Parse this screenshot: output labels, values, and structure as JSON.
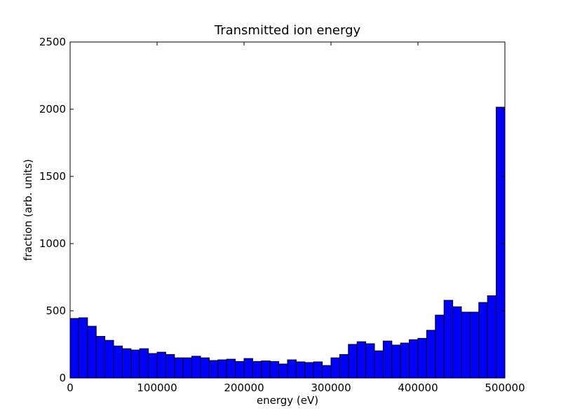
{
  "chart_data": {
    "type": "bar",
    "title": "Transmitted ion energy",
    "xlabel": "energy (eV)",
    "ylabel": "fraction (arb. units)",
    "xlim": [
      0,
      500000
    ],
    "ylim": [
      0,
      2500
    ],
    "bin_width": 10000,
    "xticks": [
      0,
      100000,
      200000,
      300000,
      400000,
      500000
    ],
    "xtick_labels": [
      "0",
      "100000",
      "200000",
      "300000",
      "400000",
      "500000"
    ],
    "yticks": [
      0,
      500,
      1000,
      1500,
      2000,
      2500
    ],
    "ytick_labels": [
      "0",
      "500",
      "1000",
      "1500",
      "2000",
      "2500"
    ],
    "grid": false,
    "bar_color": "#0000ff",
    "edge_color": "#000000",
    "bins_start": [
      0,
      10000,
      20000,
      30000,
      40000,
      50000,
      60000,
      70000,
      80000,
      90000,
      100000,
      110000,
      120000,
      130000,
      140000,
      150000,
      160000,
      170000,
      180000,
      190000,
      200000,
      210000,
      220000,
      230000,
      240000,
      250000,
      260000,
      270000,
      280000,
      290000,
      300000,
      310000,
      320000,
      330000,
      340000,
      350000,
      360000,
      370000,
      380000,
      390000,
      400000,
      410000,
      420000,
      430000,
      440000,
      450000,
      460000,
      470000,
      480000,
      490000
    ],
    "values": [
      443,
      448,
      385,
      310,
      280,
      238,
      218,
      208,
      218,
      182,
      192,
      175,
      150,
      150,
      162,
      150,
      130,
      135,
      140,
      123,
      145,
      123,
      127,
      123,
      104,
      135,
      120,
      115,
      120,
      93,
      150,
      175,
      250,
      270,
      255,
      202,
      275,
      245,
      260,
      285,
      295,
      355,
      468,
      578,
      530,
      490,
      490,
      562,
      612,
      2015
    ]
  }
}
